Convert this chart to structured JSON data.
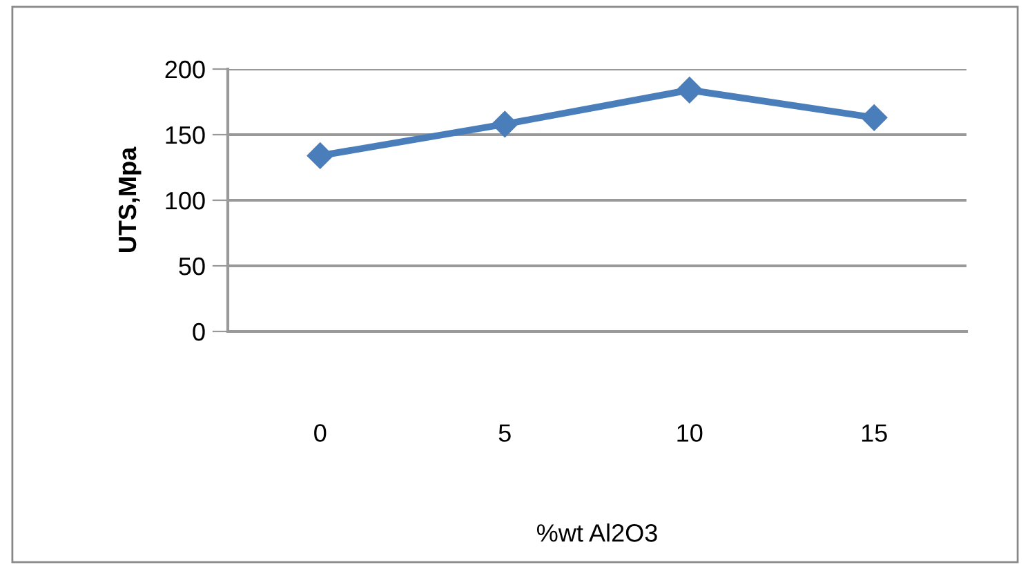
{
  "chart_data": {
    "type": "line",
    "xlabel": "%wt Al2O3",
    "ylabel": "UTS,Mpa",
    "categories": [
      "0",
      "5",
      "10",
      "15"
    ],
    "series": [
      {
        "color": "#4a7ebb",
        "values": [
          134,
          158,
          184,
          163
        ]
      }
    ],
    "ylim": [
      0,
      200
    ],
    "yticks": [
      0,
      50,
      100,
      150,
      200
    ],
    "grid": "y",
    "marker": "diamond",
    "line_style": "solid",
    "legend": false
  }
}
